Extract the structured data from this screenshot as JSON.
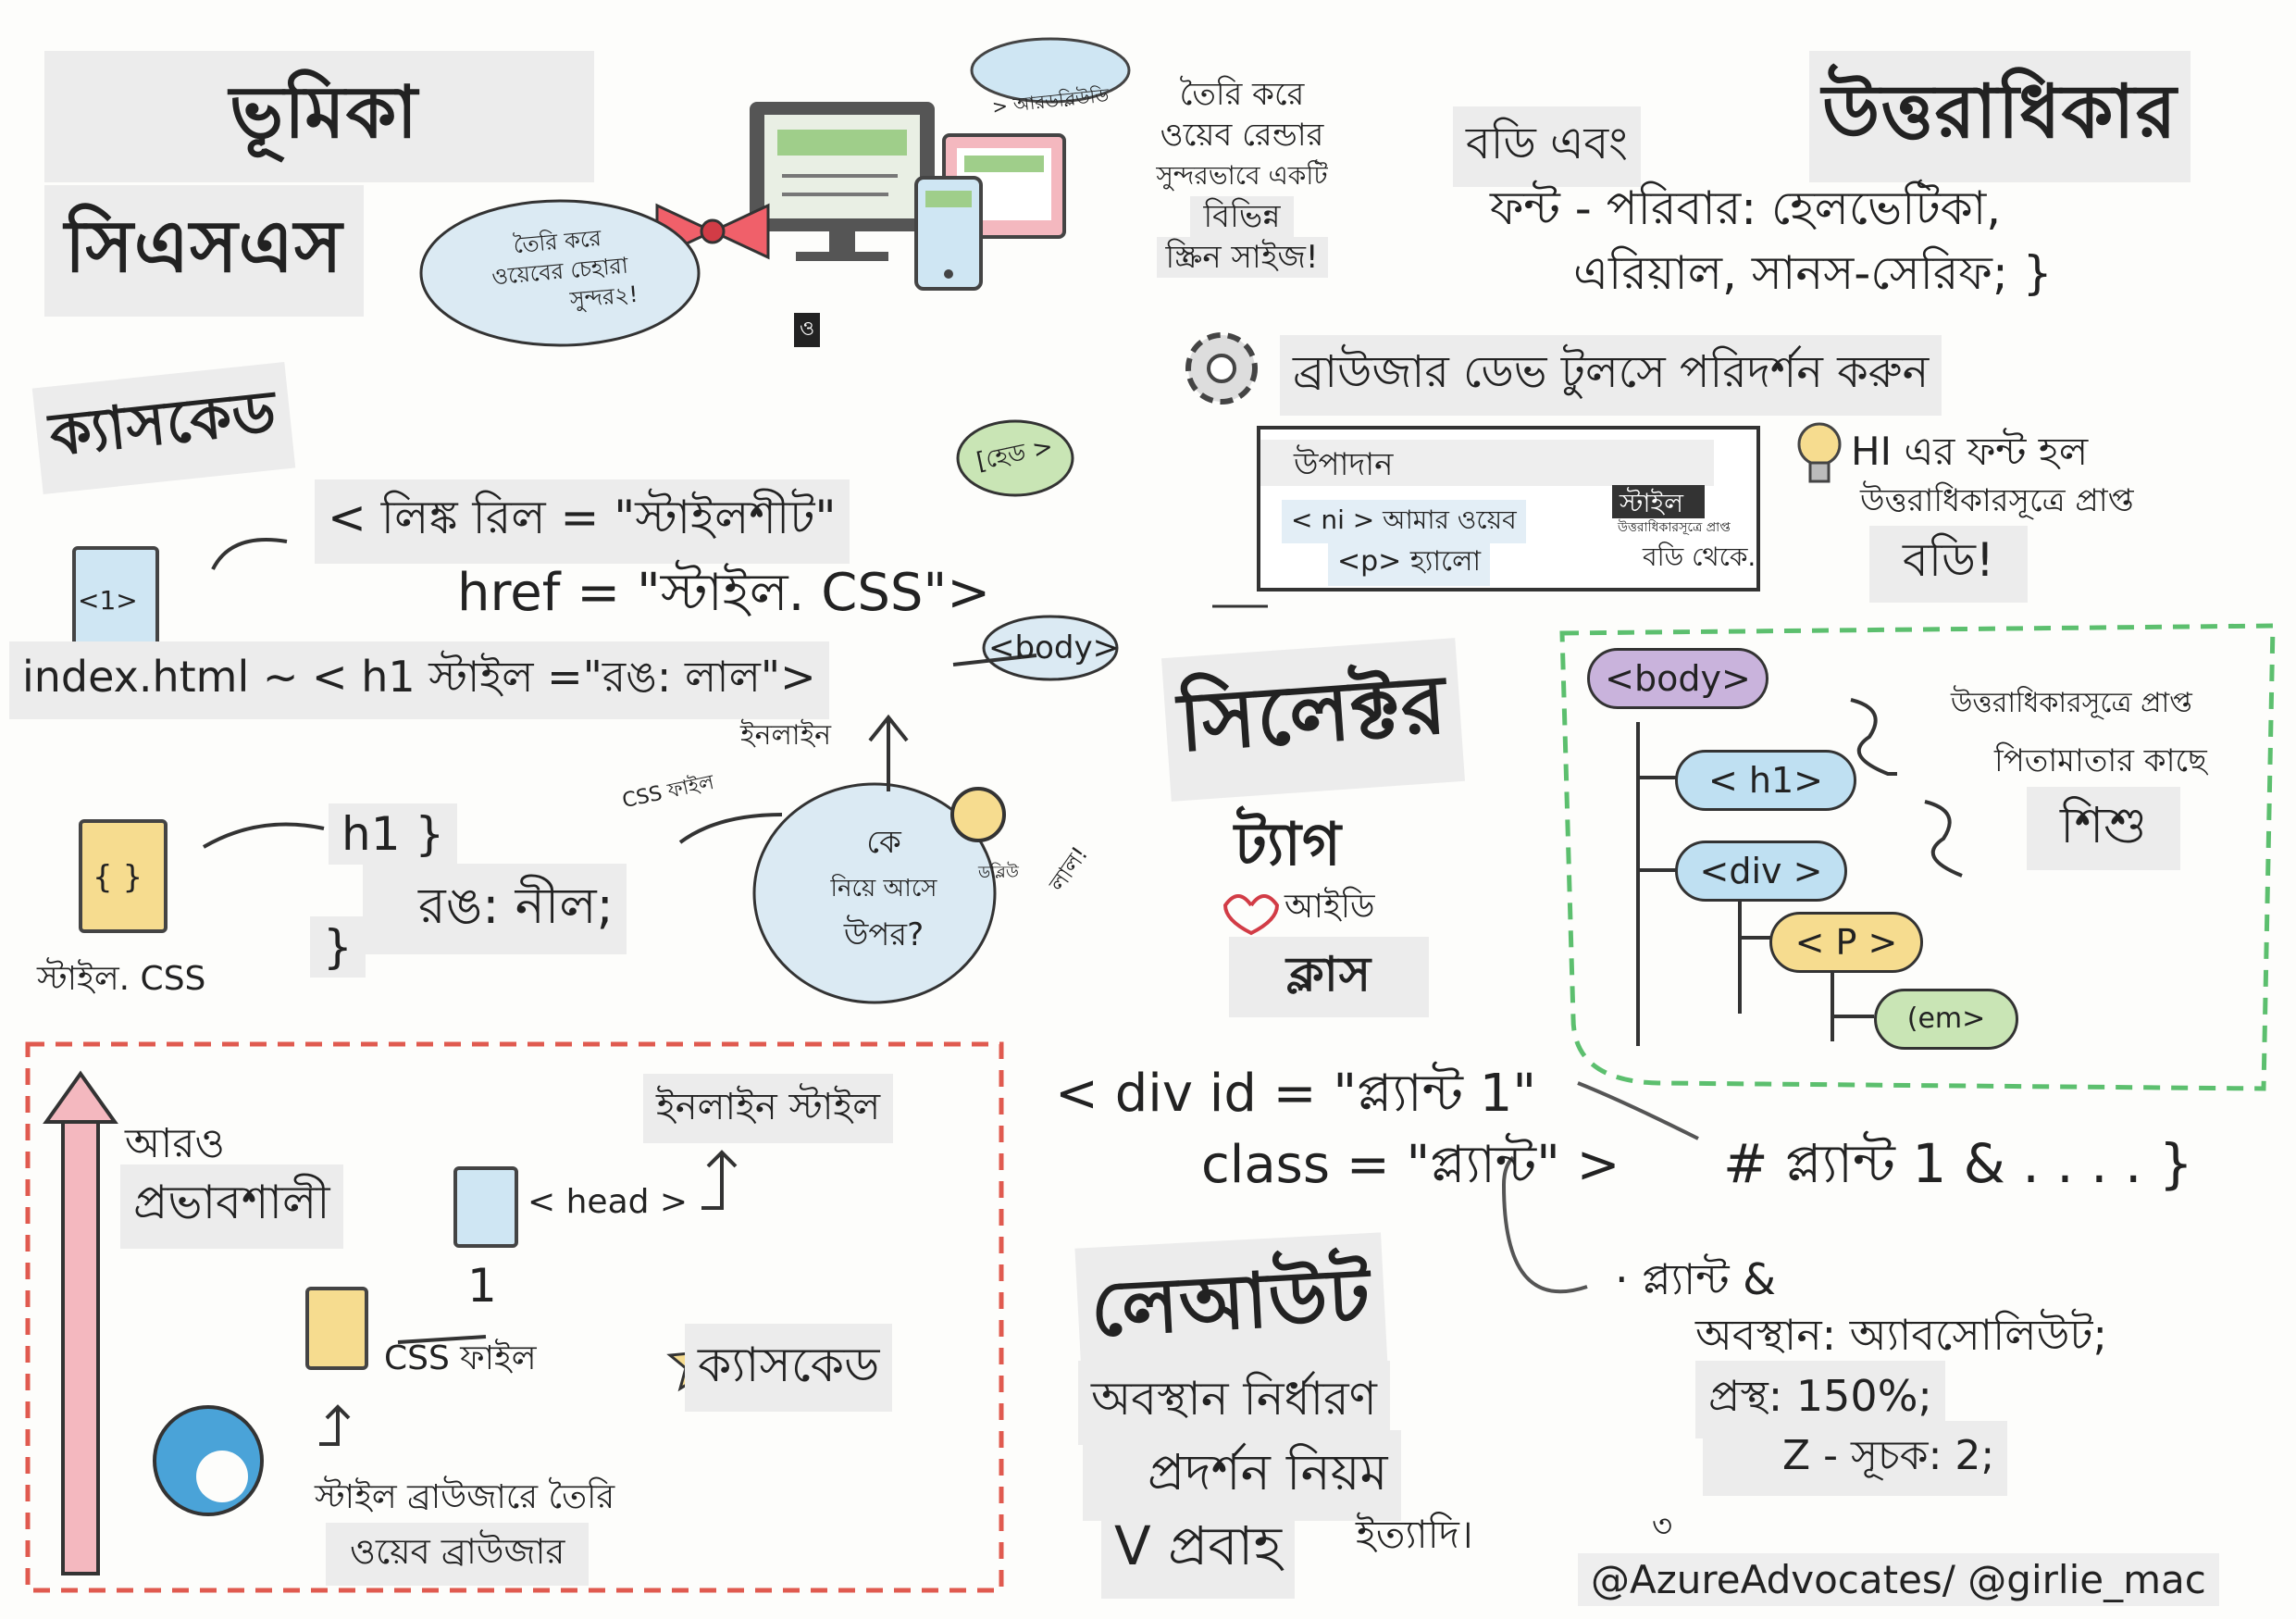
{
  "headings": {
    "intro": "ভূমিকা",
    "css": "সিএসএস",
    "cascade": "ক্যাসকেড",
    "inheritance": "উত্তরাধিকার",
    "selectors": "সিলেক্টর",
    "layout": "লেআউট"
  },
  "intro_cloud": {
    "line1": "তৈরি করে",
    "line2": "ওয়েবের চেহারা",
    "line3": "সুন্দর২!",
    "mark": "ও"
  },
  "responsive": {
    "cloud_tag": "> আরডব্লিউডি",
    "line1": "তৈরি করে",
    "line2": "ওয়েব রেন্ডার",
    "line3": "সুন্দরভাবে একটি",
    "line4": "বিভিন্ন",
    "line5": "স্ক্রিন সাইজ!"
  },
  "cascade_section": {
    "head_tag": "[হেড >",
    "link_line1": "< লিঙ্ক রিল = \"স্টাইলশীট\"",
    "link_line2": "href = \"স্টাইল. CSS\">",
    "doc1_label": "<1>",
    "inline_line": "index.html ~ < h1 স্টাইল =\"রঙ: লাল\">",
    "body_tag": "<body>",
    "inline_label": "ইনলাইন",
    "css_file_label": "CSS ফাইল",
    "who_line1": "কে",
    "who_line2": "নিয়ে আসে",
    "who_line3": "উপর?",
    "winner": "ডব্লিউ",
    "red": "লাল!",
    "rule_open": "h1 }",
    "rule_body": "রঙ: নীল;",
    "rule_close": "}",
    "css_doc_glyph": "{ }",
    "css_doc_label": "স্টাইল. CSS"
  },
  "inheritance_section": {
    "body_and": "বডি এবং",
    "font_line1": "ফন্ট - পরিবার: হেলভেটিকা,",
    "font_line2": "এরিয়াল, সানস-সেরিফ; }",
    "devtools": "ব্রাউজার ডেভ টুলসে পরিদর্শন করুন",
    "panel_elements": "উপাদান",
    "panel_style": "স্টাইল",
    "panel_inherited": "উত্তরাধিকারসূত্রে প্রাপ্ত",
    "panel_line1": "< ni > আমার ওয়েব",
    "panel_line2": "<p> হ্যালো",
    "panel_from_body": "বডি থেকে.",
    "hi_line1": "HI এর ফন্ট হল",
    "hi_line2": "উত্তরাধিকারসূত্রে প্রাপ্ত",
    "hi_line3": "বডি!"
  },
  "tree": {
    "body": "<body>",
    "h1": "< h1>",
    "div": "<div >",
    "p": "< P >",
    "em": "(em>",
    "note1": "উত্তরাধিকারসূত্রে প্রাপ্ত",
    "note2": "পিতামাতার কাছে",
    "note3": "শিশু"
  },
  "selectors_section": {
    "tag": "ট্যাগ",
    "id": "আইডি",
    "class": "ক্লাস",
    "div_line1": "< div id = \"প্ল্যান্ট 1\"",
    "div_line2": "class = \"প্ল্যান্ট\" >",
    "id_rule": "# প্ল্যান্ট 1 & . . . . }"
  },
  "layout_section": {
    "item1": "অবস্থান নির্ধারণ",
    "item2": "প্রদর্শন নিয়ম",
    "item3": "V প্রবাহ",
    "etc": "ইত্যাদি।",
    "rule_line1": "· প্ল্যান্ট &",
    "rule_line2": "অবস্থান: অ্যাবসোলিউট;",
    "rule_line3": "প্রস্থ: 150%;",
    "rule_line4": "Z - সূচক: 2;",
    "mark": "৩"
  },
  "specificity": {
    "more_line1": "আরও",
    "more_line2": "প্রভাবশালী",
    "inline_style": "ইনলাইন স্টাইল",
    "head": "< head >",
    "one": "1",
    "css_file": "CSS ফাইল",
    "cascade": "ক্যাসকেড",
    "browser_line1": "স্টাইল ব্রাউজারে তৈরি",
    "browser_line2": "ওয়েব ব্রাউজার"
  },
  "credit": "@AzureAdvocates/ @girlie_mac",
  "colors": {
    "purple": "#c9b3dc",
    "blue": "#bfe0f2",
    "yellow": "#f6dc8f",
    "green": "#c9e5b5",
    "red_dash": "#e05a4f",
    "green_dash": "#5cbf6e",
    "pink_arrow": "#f4b8bf"
  }
}
